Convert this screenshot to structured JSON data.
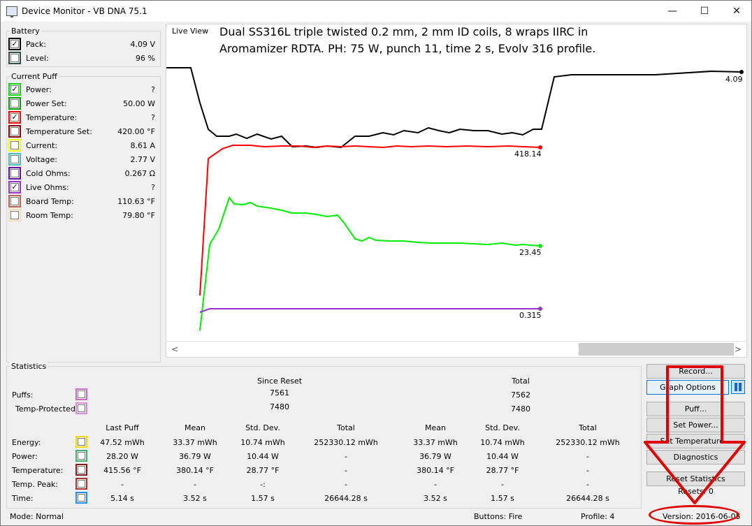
{
  "window": {
    "title": "Device Monitor - VB DNA 75.1",
    "minimize": "—",
    "maximize": "☐",
    "close": "✕"
  },
  "battery": {
    "title": "Battery",
    "rows": [
      {
        "label": "Pack:",
        "value": "4.09 V",
        "checked": true,
        "color": "#000000"
      },
      {
        "label": "Level:",
        "value": "96 %",
        "checked": false,
        "color": "#2f4f4f"
      }
    ]
  },
  "current_puff": {
    "title": "Current Puff",
    "rows": [
      {
        "label": "Power:",
        "value": "?",
        "checked": true,
        "color": "#00e000"
      },
      {
        "label": "Power Set:",
        "value": "50.00 W",
        "checked": false,
        "color": "#00a000"
      },
      {
        "label": "Temperature:",
        "value": "?",
        "checked": true,
        "color": "#ff0000"
      },
      {
        "label": "Temperature Set:",
        "value": "420.00 °F",
        "checked": false,
        "color": "#8b0000"
      },
      {
        "label": "Current:",
        "value": "8.61 A",
        "checked": false,
        "color": "#ffff00"
      },
      {
        "label": "Voltage:",
        "value": "2.77 V",
        "checked": false,
        "color": "#40c0c0"
      },
      {
        "label": "Cold Ohms:",
        "value": "0.267 Ω",
        "checked": false,
        "color": "#6a0dad"
      },
      {
        "label": "Live Ohms:",
        "value": "?",
        "checked": true,
        "color": "#9932cc"
      },
      {
        "label": "Board Temp:",
        "value": "110.63 °F",
        "checked": false,
        "color": "#c06050"
      },
      {
        "label": "Room Temp:",
        "value": "79.80 °F",
        "checked": false,
        "color": "#f5deb3"
      }
    ]
  },
  "live_view": {
    "title": "Live View",
    "caption_line1": "Dual SS316L triple twisted 0.2 mm, 2 mm ID coils, 8 wraps IIRC in",
    "caption_line2": "Aromamizer RDTA.  PH: 75 W, punch 11, time 2 s, Evolv 316 profile.",
    "scroll_left": "<",
    "scroll_right": ">"
  },
  "chart_data": {
    "type": "line",
    "series": [
      {
        "label": "4.09",
        "color": "#000000",
        "values": [
          3.95,
          3.95,
          3.95,
          3.95,
          3.95,
          3.95,
          3.95,
          3.95,
          3.95,
          3.95,
          3.95,
          3.95,
          3.95,
          3.95,
          3.95,
          3.95,
          3.95,
          3.95,
          3.95,
          3.95,
          3.95,
          3.95,
          3.95,
          3.95,
          3.95,
          3.95,
          3.95,
          3.95,
          3.95,
          3.95,
          3.95,
          3.95,
          3.95,
          3.95,
          3.95,
          3.95,
          3.95,
          3.95,
          3.95,
          3.95,
          3.95,
          3.95,
          3.95,
          3.95,
          3.95,
          3.95,
          3.95,
          3.95,
          3.95,
          3.95,
          3.95,
          3.95,
          3.95,
          4.09
        ]
      },
      {
        "label": "418.14",
        "color": "#ff0000",
        "values": [
          418.14
        ]
      },
      {
        "label": "23.45",
        "color": "#00e000",
        "values": [
          23.45
        ]
      },
      {
        "label": "0.315",
        "color": "#9932cc",
        "values": [
          0.315
        ]
      }
    ]
  },
  "statistics": {
    "title": "Statistics",
    "since_reset": "Since Reset",
    "total": "Total",
    "puffs_label": "Puffs:",
    "puffs_since_reset": "7561",
    "puffs_total": "7562",
    "temp_protected_label": "Temp-Protected:",
    "temp_protected_since_reset": "7480",
    "temp_protected_total": "7480",
    "headers": [
      "Last Puff",
      "Mean",
      "Std. Dev.",
      "Total",
      "Mean",
      "Std. Dev.",
      "Total"
    ],
    "rows": [
      {
        "label": "Energy:",
        "color": "#ffd700",
        "cells": [
          "47.52 mWh",
          "33.37 mWh",
          "10.74 mWh",
          "252330.12 mWh",
          "33.37 mWh",
          "10.74 mWh",
          "252330.12 mWh"
        ]
      },
      {
        "label": "Power:",
        "color": "#3cb371",
        "cells": [
          "28.20 W",
          "36.79 W",
          "10.44 W",
          "-",
          "36.79 W",
          "10.44 W",
          "-"
        ]
      },
      {
        "label": "Temperature:",
        "color": "#8b1a1a",
        "cells": [
          "415.56 °F",
          "380.14 °F",
          "28.77 °F",
          "-",
          "380.14 °F",
          "28.77 °F",
          "-"
        ]
      },
      {
        "label": "Temp. Peak:",
        "color": "#b03030",
        "cells": [
          "-",
          "-",
          "-:",
          "-",
          "-",
          "-",
          "-"
        ]
      },
      {
        "label": "Time:",
        "color": "#1e90ff",
        "cells": [
          "5.14 s",
          "3.52 s",
          "1.57 s",
          "26644.28 s",
          "3.52 s",
          "1.57 s",
          "26644.28 s"
        ]
      }
    ],
    "puffs_color": "#cc66cc",
    "temp_protected_color": "#dd88dd"
  },
  "buttons": {
    "record": "Record...",
    "graph_options": "Graph Options",
    "puff": "Puff...",
    "set_power": "Set Power...",
    "set_temperature": "Set Temperature...",
    "diagnostics": "Diagnostics",
    "reset_statistics": "Reset Statistics",
    "resets": "Resets: 0"
  },
  "status": {
    "mode": "Mode: Normal",
    "buttons": "Buttons: Fire",
    "profile": "Profile: 4",
    "version": "Version: 2016-06-05"
  }
}
